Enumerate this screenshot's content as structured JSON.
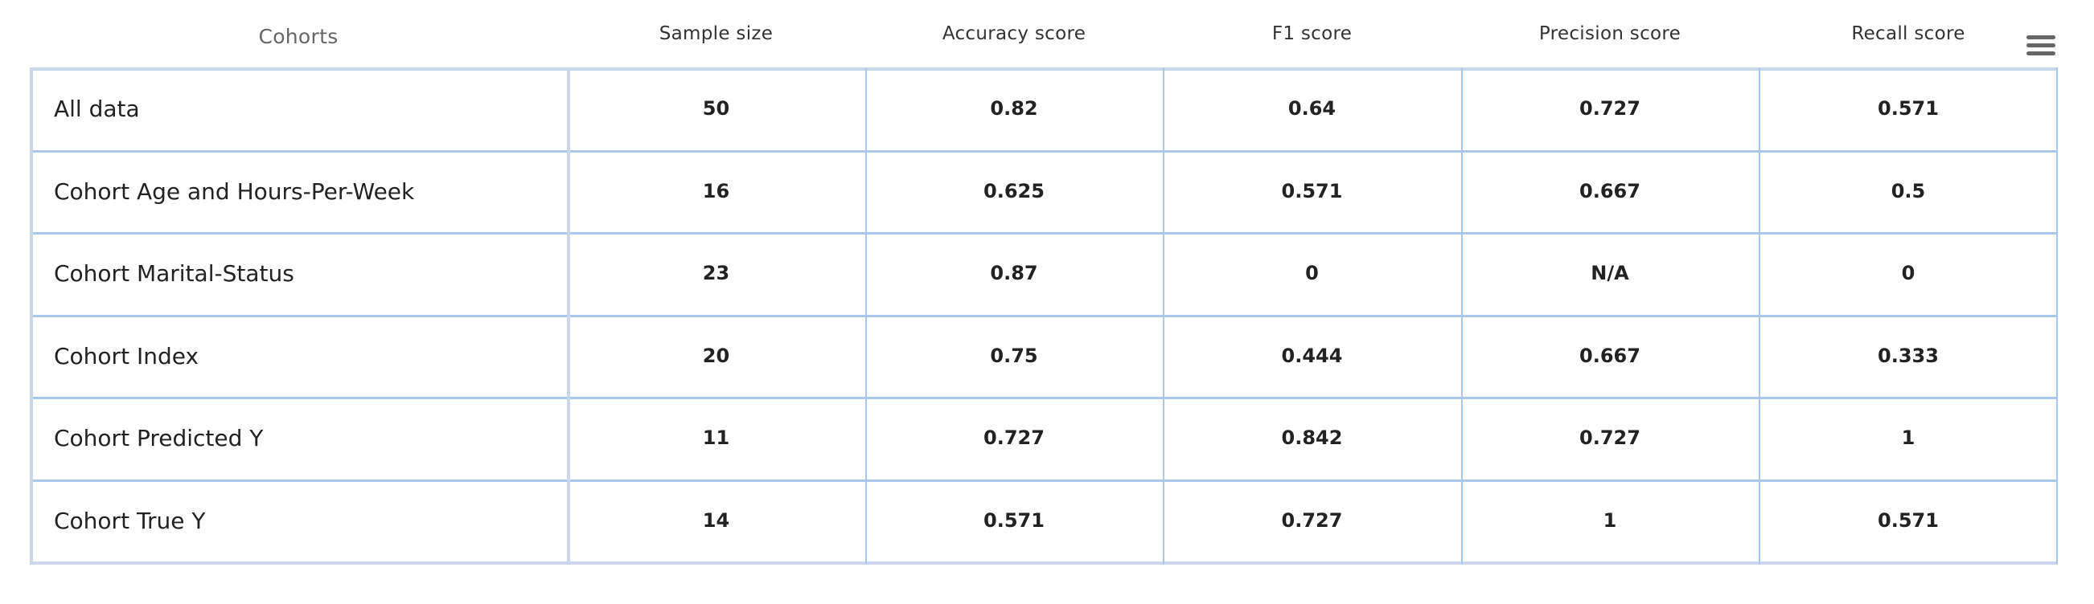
{
  "table": {
    "columns": [
      {
        "key": "cohort",
        "label": "Cohorts"
      },
      {
        "key": "sample_size",
        "label": "Sample size"
      },
      {
        "key": "accuracy",
        "label": "Accuracy score"
      },
      {
        "key": "f1",
        "label": "F1 score"
      },
      {
        "key": "precision",
        "label": "Precision score"
      },
      {
        "key": "recall",
        "label": "Recall score"
      }
    ],
    "rows": [
      {
        "cohort": "All data",
        "sample_size": "50",
        "accuracy": "0.82",
        "f1": "0.64",
        "precision": "0.727",
        "recall": "0.571"
      },
      {
        "cohort": "Cohort Age and Hours-Per-Week",
        "sample_size": "16",
        "accuracy": "0.625",
        "f1": "0.571",
        "precision": "0.667",
        "recall": "0.5"
      },
      {
        "cohort": "Cohort Marital-Status",
        "sample_size": "23",
        "accuracy": "0.87",
        "f1": "0",
        "precision": "N/A",
        "recall": "0"
      },
      {
        "cohort": "Cohort Index",
        "sample_size": "20",
        "accuracy": "0.75",
        "f1": "0.444",
        "precision": "0.667",
        "recall": "0.333"
      },
      {
        "cohort": "Cohort Predicted Y",
        "sample_size": "11",
        "accuracy": "0.727",
        "f1": "0.842",
        "precision": "0.727",
        "recall": "1"
      },
      {
        "cohort": "Cohort True Y",
        "sample_size": "14",
        "accuracy": "0.571",
        "f1": "0.727",
        "precision": "1",
        "recall": "0.571"
      }
    ]
  },
  "menu": {
    "icon": "hamburger-menu-icon"
  }
}
